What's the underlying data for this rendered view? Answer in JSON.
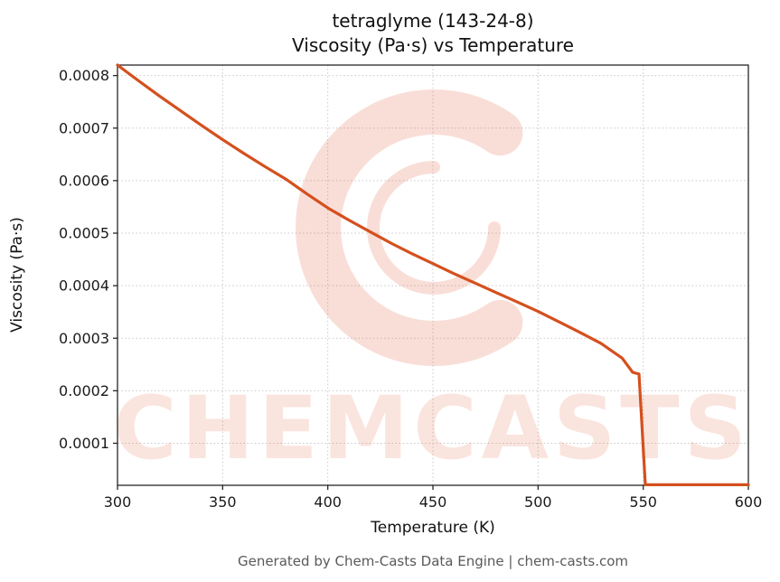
{
  "title_line1": "tetraglyme (143-24-8)",
  "title_line2": "Viscosity (Pa·s) vs Temperature",
  "footer": "Generated by Chem-Casts Data Engine | chem-casts.com",
  "watermark": {
    "text": "CHEMCASTS",
    "logo": "chemcasts-c-swirl",
    "color": "#e25c3b"
  },
  "chart_data": {
    "type": "line",
    "title": "tetraglyme (143-24-8) Viscosity (Pa·s) vs Temperature",
    "xlabel": "Temperature (K)",
    "ylabel": "Viscosity (Pa·s)",
    "xlim": [
      300,
      600
    ],
    "ylim": [
      2e-05,
      0.00082
    ],
    "xticks": [
      300,
      350,
      400,
      450,
      500,
      550,
      600
    ],
    "yticks": [
      0.0001,
      0.0002,
      0.0003,
      0.0004,
      0.0005,
      0.0006,
      0.0007,
      0.0008
    ],
    "grid": true,
    "legend": false,
    "line_color": "#d4501e",
    "series": [
      {
        "name": "viscosity",
        "x": [
          300,
          310,
          320,
          330,
          340,
          350,
          360,
          370,
          380,
          390,
          400,
          410,
          420,
          430,
          440,
          450,
          460,
          470,
          480,
          490,
          500,
          510,
          520,
          530,
          540,
          545,
          548,
          551,
          560,
          570,
          580,
          590,
          600
        ],
        "y": [
          0.00082,
          0.00079,
          0.000761,
          0.000733,
          0.000705,
          0.000678,
          0.000652,
          0.000627,
          0.000603,
          0.000575,
          0.000548,
          0.000525,
          0.000503,
          0.000481,
          0.000461,
          0.000442,
          0.000423,
          0.000405,
          0.000387,
          0.000369,
          0.000351,
          0.000331,
          0.000311,
          0.00029,
          0.000262,
          0.000235,
          0.000232,
          2.1e-05,
          2.1e-05,
          2.1e-05,
          2.1e-05,
          2.1e-05,
          2.1e-05
        ]
      }
    ]
  }
}
